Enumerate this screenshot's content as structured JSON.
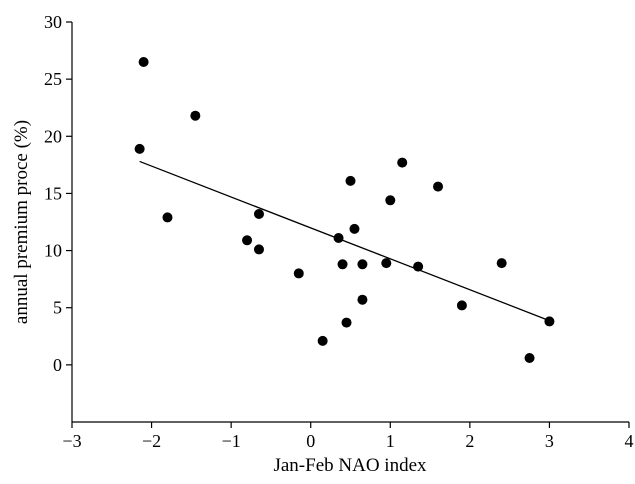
{
  "chart_data": {
    "type": "scatter",
    "title": "",
    "xlabel": "Jan-Feb NAO index",
    "ylabel": "annual premium proce (%)",
    "xlim": [
      -3,
      4
    ],
    "ylim": [
      -5,
      30
    ],
    "xticks": [
      -3,
      -2,
      -1,
      0,
      1,
      2,
      3,
      4
    ],
    "xtick_labels": [
      "−3",
      "−2",
      "−1",
      "0",
      "1",
      "2",
      "3",
      "4"
    ],
    "yticks": [
      0,
      5,
      10,
      15,
      20,
      25,
      30
    ],
    "ytick_labels": [
      "0",
      "5",
      "10",
      "15",
      "20",
      "25",
      "30"
    ],
    "grid": false,
    "legend": "none",
    "series": [
      {
        "points": [
          {
            "x": -2.1,
            "y": 26.5
          },
          {
            "x": -2.15,
            "y": 18.9
          },
          {
            "x": -1.45,
            "y": 21.8
          },
          {
            "x": -1.8,
            "y": 12.9
          },
          {
            "x": -0.8,
            "y": 10.9
          },
          {
            "x": -0.65,
            "y": 13.2
          },
          {
            "x": -0.65,
            "y": 10.1
          },
          {
            "x": -0.15,
            "y": 8.0
          },
          {
            "x": 0.15,
            "y": 2.1
          },
          {
            "x": 0.35,
            "y": 11.1
          },
          {
            "x": 0.4,
            "y": 8.8
          },
          {
            "x": 0.45,
            "y": 3.7
          },
          {
            "x": 0.5,
            "y": 16.1
          },
          {
            "x": 0.55,
            "y": 11.9
          },
          {
            "x": 0.65,
            "y": 8.8
          },
          {
            "x": 0.65,
            "y": 5.7
          },
          {
            "x": 0.95,
            "y": 8.9
          },
          {
            "x": 1.0,
            "y": 14.4
          },
          {
            "x": 1.15,
            "y": 17.7
          },
          {
            "x": 1.35,
            "y": 8.6
          },
          {
            "x": 1.6,
            "y": 15.6
          },
          {
            "x": 1.9,
            "y": 5.2
          },
          {
            "x": 2.4,
            "y": 8.9
          },
          {
            "x": 2.75,
            "y": 0.6
          },
          {
            "x": 3.0,
            "y": 3.8
          }
        ]
      }
    ],
    "trend_line": {
      "x": [
        -2.15,
        2.95
      ],
      "y": [
        17.8,
        4.0
      ]
    },
    "colors": {
      "points": "#000000",
      "axes": "#000000",
      "line": "#000000"
    }
  }
}
